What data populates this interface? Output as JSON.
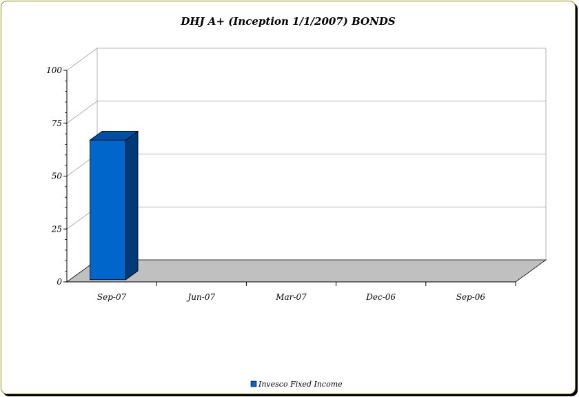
{
  "chart_data": {
    "type": "bar",
    "title": "DHJ A+ (Inception 1/1/2007) BONDS",
    "categories": [
      "Sep-07",
      "Jun-07",
      "Mar-07",
      "Dec-06",
      "Sep-06"
    ],
    "series": [
      {
        "name": "Invesco Fixed Income",
        "values": [
          66,
          0,
          0,
          0,
          0
        ]
      }
    ],
    "ylim": [
      0,
      100
    ],
    "yticks": [
      0,
      25,
      50,
      75,
      100
    ],
    "grid": true,
    "legend_position": "bottom",
    "colors": {
      "bar_front": "#0066cc",
      "bar_side": "#003a78",
      "bar_top": "#0050a6",
      "floor": "#c0c0c0",
      "grid": "#a0a0a0",
      "frame_border": "#8c8c1c"
    }
  }
}
